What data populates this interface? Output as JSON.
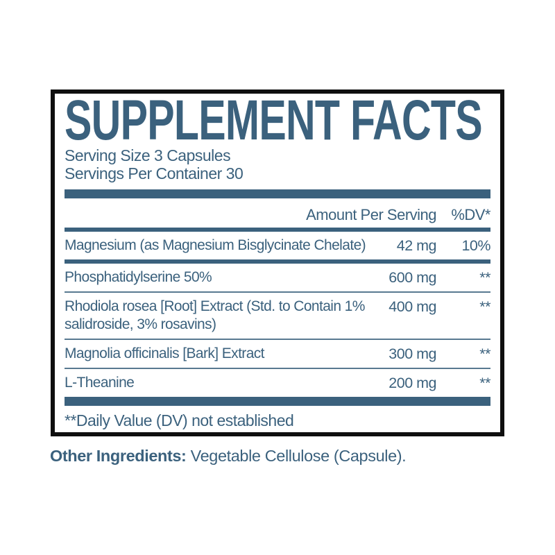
{
  "colors": {
    "accent": "#3b617d",
    "border": "#0f0f0f",
    "background": "#ffffff"
  },
  "panel": {
    "title": "SUPPLEMENT FACTS",
    "serving_size": "Serving Size 3 Capsules",
    "servings_per_container": "Servings Per Container 30",
    "columns": {
      "amount": "Amount Per Serving",
      "dv": "%DV*"
    },
    "rows": [
      {
        "name": "Magnesium (as Magnesium Bisglycinate Chelate)",
        "amount": "42 mg",
        "dv": "10%"
      },
      {
        "name": "Phosphatidylserine 50%",
        "amount": "600 mg",
        "dv": "**"
      },
      {
        "name": "Rhodiola rosea [Root] Extract (Std. to Contain 1% salidroside, 3% rosavins)",
        "amount": "400 mg",
        "dv": "**"
      },
      {
        "name": "Magnolia officinalis [Bark] Extract",
        "amount": "300 mg",
        "dv": "**"
      },
      {
        "name": "L-Theanine",
        "amount": "200 mg",
        "dv": "**"
      }
    ],
    "footnote": "**Daily Value (DV) not established"
  },
  "other_ingredients": {
    "label": "Other Ingredients:",
    "value": " Vegetable Cellulose (Capsule)."
  }
}
